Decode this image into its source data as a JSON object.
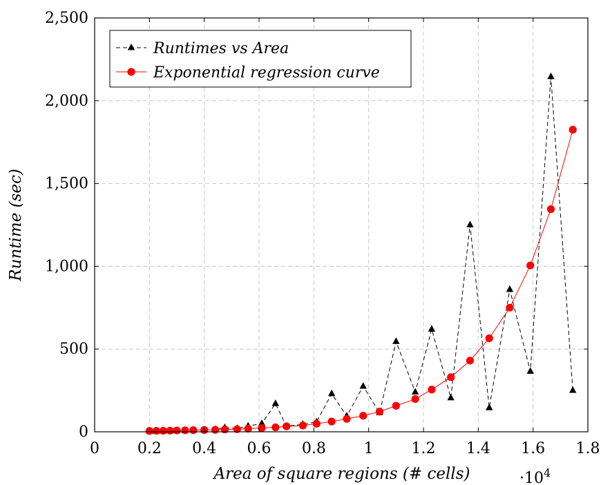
{
  "chart_data": {
    "type": "line",
    "xlabel": "Area of square regions (# cells)",
    "x_scale_base": "10",
    "x_scale_exp": "4",
    "ylabel": "Runtime (sec)",
    "xlim": [
      0,
      1.8
    ],
    "ylim": [
      0,
      2500
    ],
    "x_ticks": [
      0,
      0.2,
      0.4,
      0.6,
      0.8,
      1,
      1.2,
      1.4,
      1.6,
      1.8
    ],
    "x_tick_labels": [
      "0",
      "0.2",
      "0.4",
      "0.6",
      "0.8",
      "1",
      "1.2",
      "1.4",
      "1.6",
      "1.8"
    ],
    "y_ticks": [
      0,
      500,
      1000,
      1500,
      2000,
      2500
    ],
    "y_tick_labels": [
      "0",
      "500",
      "1,000",
      "1,500",
      "2,000",
      "2,500"
    ],
    "grid": true,
    "legend_position": "top-left",
    "series": [
      {
        "name": "Runtimes vs Area",
        "color": "#000000",
        "style": "dashed",
        "marker": "triangle",
        "x": [
          0.2,
          0.225,
          0.25,
          0.275,
          0.3,
          0.33,
          0.36,
          0.4,
          0.44,
          0.475,
          0.52,
          0.56,
          0.61,
          0.66,
          0.7,
          0.76,
          0.81,
          0.865,
          0.92,
          0.98,
          1.04,
          1.1,
          1.17,
          1.23,
          1.3,
          1.37,
          1.44,
          1.515,
          1.59,
          1.665,
          1.745
        ],
        "y": [
          3,
          3,
          4,
          5,
          6,
          8,
          10,
          11,
          14,
          25,
          20,
          35,
          50,
          170,
          35,
          45,
          60,
          230,
          95,
          275,
          115,
          545,
          240,
          620,
          205,
          1250,
          145,
          860,
          365,
          2145,
          250
        ]
      },
      {
        "name": "Exponential regression curve",
        "color": "#ff0000",
        "style": "solid",
        "marker": "circle",
        "x": [
          0.2,
          0.225,
          0.25,
          0.275,
          0.3,
          0.33,
          0.36,
          0.4,
          0.44,
          0.475,
          0.52,
          0.56,
          0.61,
          0.66,
          0.7,
          0.76,
          0.81,
          0.865,
          0.92,
          0.98,
          1.04,
          1.1,
          1.17,
          1.23,
          1.3,
          1.37,
          1.44,
          1.515,
          1.59,
          1.665,
          1.745
        ],
        "y": [
          5,
          6,
          6,
          7,
          8,
          9,
          10,
          11,
          12,
          14,
          16,
          19,
          23,
          27,
          33,
          38,
          49,
          62,
          78,
          97,
          122,
          157,
          198,
          255,
          330,
          430,
          565,
          750,
          1005,
          1345,
          1825
        ]
      }
    ]
  }
}
